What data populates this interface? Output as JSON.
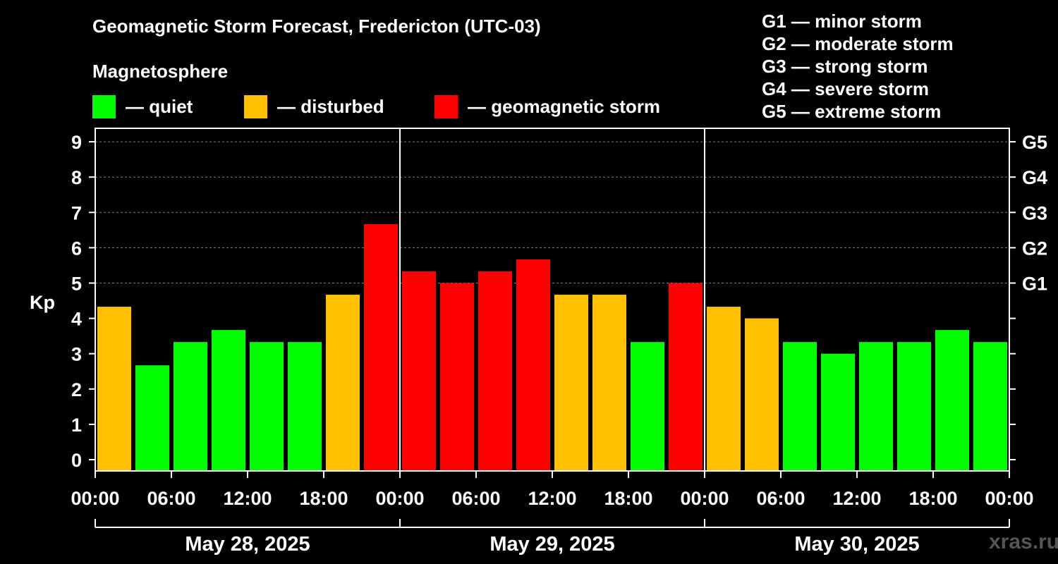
{
  "title": "Geomagnetic Storm Forecast, Fredericton (UTC-03)",
  "subtitle": "Magnetosphere",
  "legend": [
    {
      "label": "— quiet",
      "color": "#00ff00"
    },
    {
      "label": "— disturbed",
      "color": "#ffc000"
    },
    {
      "label": "— geomagnetic storm",
      "color": "#ff0000"
    }
  ],
  "g_scale": [
    "G1 — minor storm",
    "G2 — moderate storm",
    "G3 — strong storm",
    "G4 — severe storm",
    "G5 — extreme storm"
  ],
  "watermark": "xras.ru",
  "chart_data": {
    "type": "bar",
    "ylabel": "Kp",
    "ylim": [
      0,
      9
    ],
    "y_ticks": [
      "0",
      "1",
      "2",
      "3",
      "4",
      "5",
      "6",
      "7",
      "8",
      "9"
    ],
    "right_labels": [
      {
        "value": 5,
        "label": "G1"
      },
      {
        "value": 6,
        "label": "G2"
      },
      {
        "value": 7,
        "label": "G3"
      },
      {
        "value": 8,
        "label": "G4"
      },
      {
        "value": 9,
        "label": "G5"
      }
    ],
    "x_ticks": [
      "00:00",
      "06:00",
      "12:00",
      "18:00",
      "00:00",
      "06:00",
      "12:00",
      "18:00",
      "00:00",
      "06:00",
      "12:00",
      "18:00",
      "00:00"
    ],
    "days": [
      "May 28, 2025",
      "May 29, 2025",
      "May 30, 2025"
    ],
    "colors": {
      "quiet": "#00ff00",
      "disturbed": "#ffc000",
      "storm": "#ff0000"
    },
    "values": [
      4.33,
      2.67,
      3.33,
      3.67,
      3.33,
      3.33,
      4.67,
      6.67,
      5.33,
      5.0,
      5.33,
      5.67,
      4.67,
      4.67,
      3.33,
      5.0,
      4.33,
      4.0,
      3.33,
      3.0,
      3.33,
      3.33,
      3.67,
      3.33
    ],
    "levels": [
      "disturbed",
      "quiet",
      "quiet",
      "quiet",
      "quiet",
      "quiet",
      "disturbed",
      "storm",
      "storm",
      "storm",
      "storm",
      "storm",
      "disturbed",
      "disturbed",
      "quiet",
      "storm",
      "disturbed",
      "disturbed",
      "quiet",
      "quiet",
      "quiet",
      "quiet",
      "quiet",
      "quiet"
    ]
  }
}
